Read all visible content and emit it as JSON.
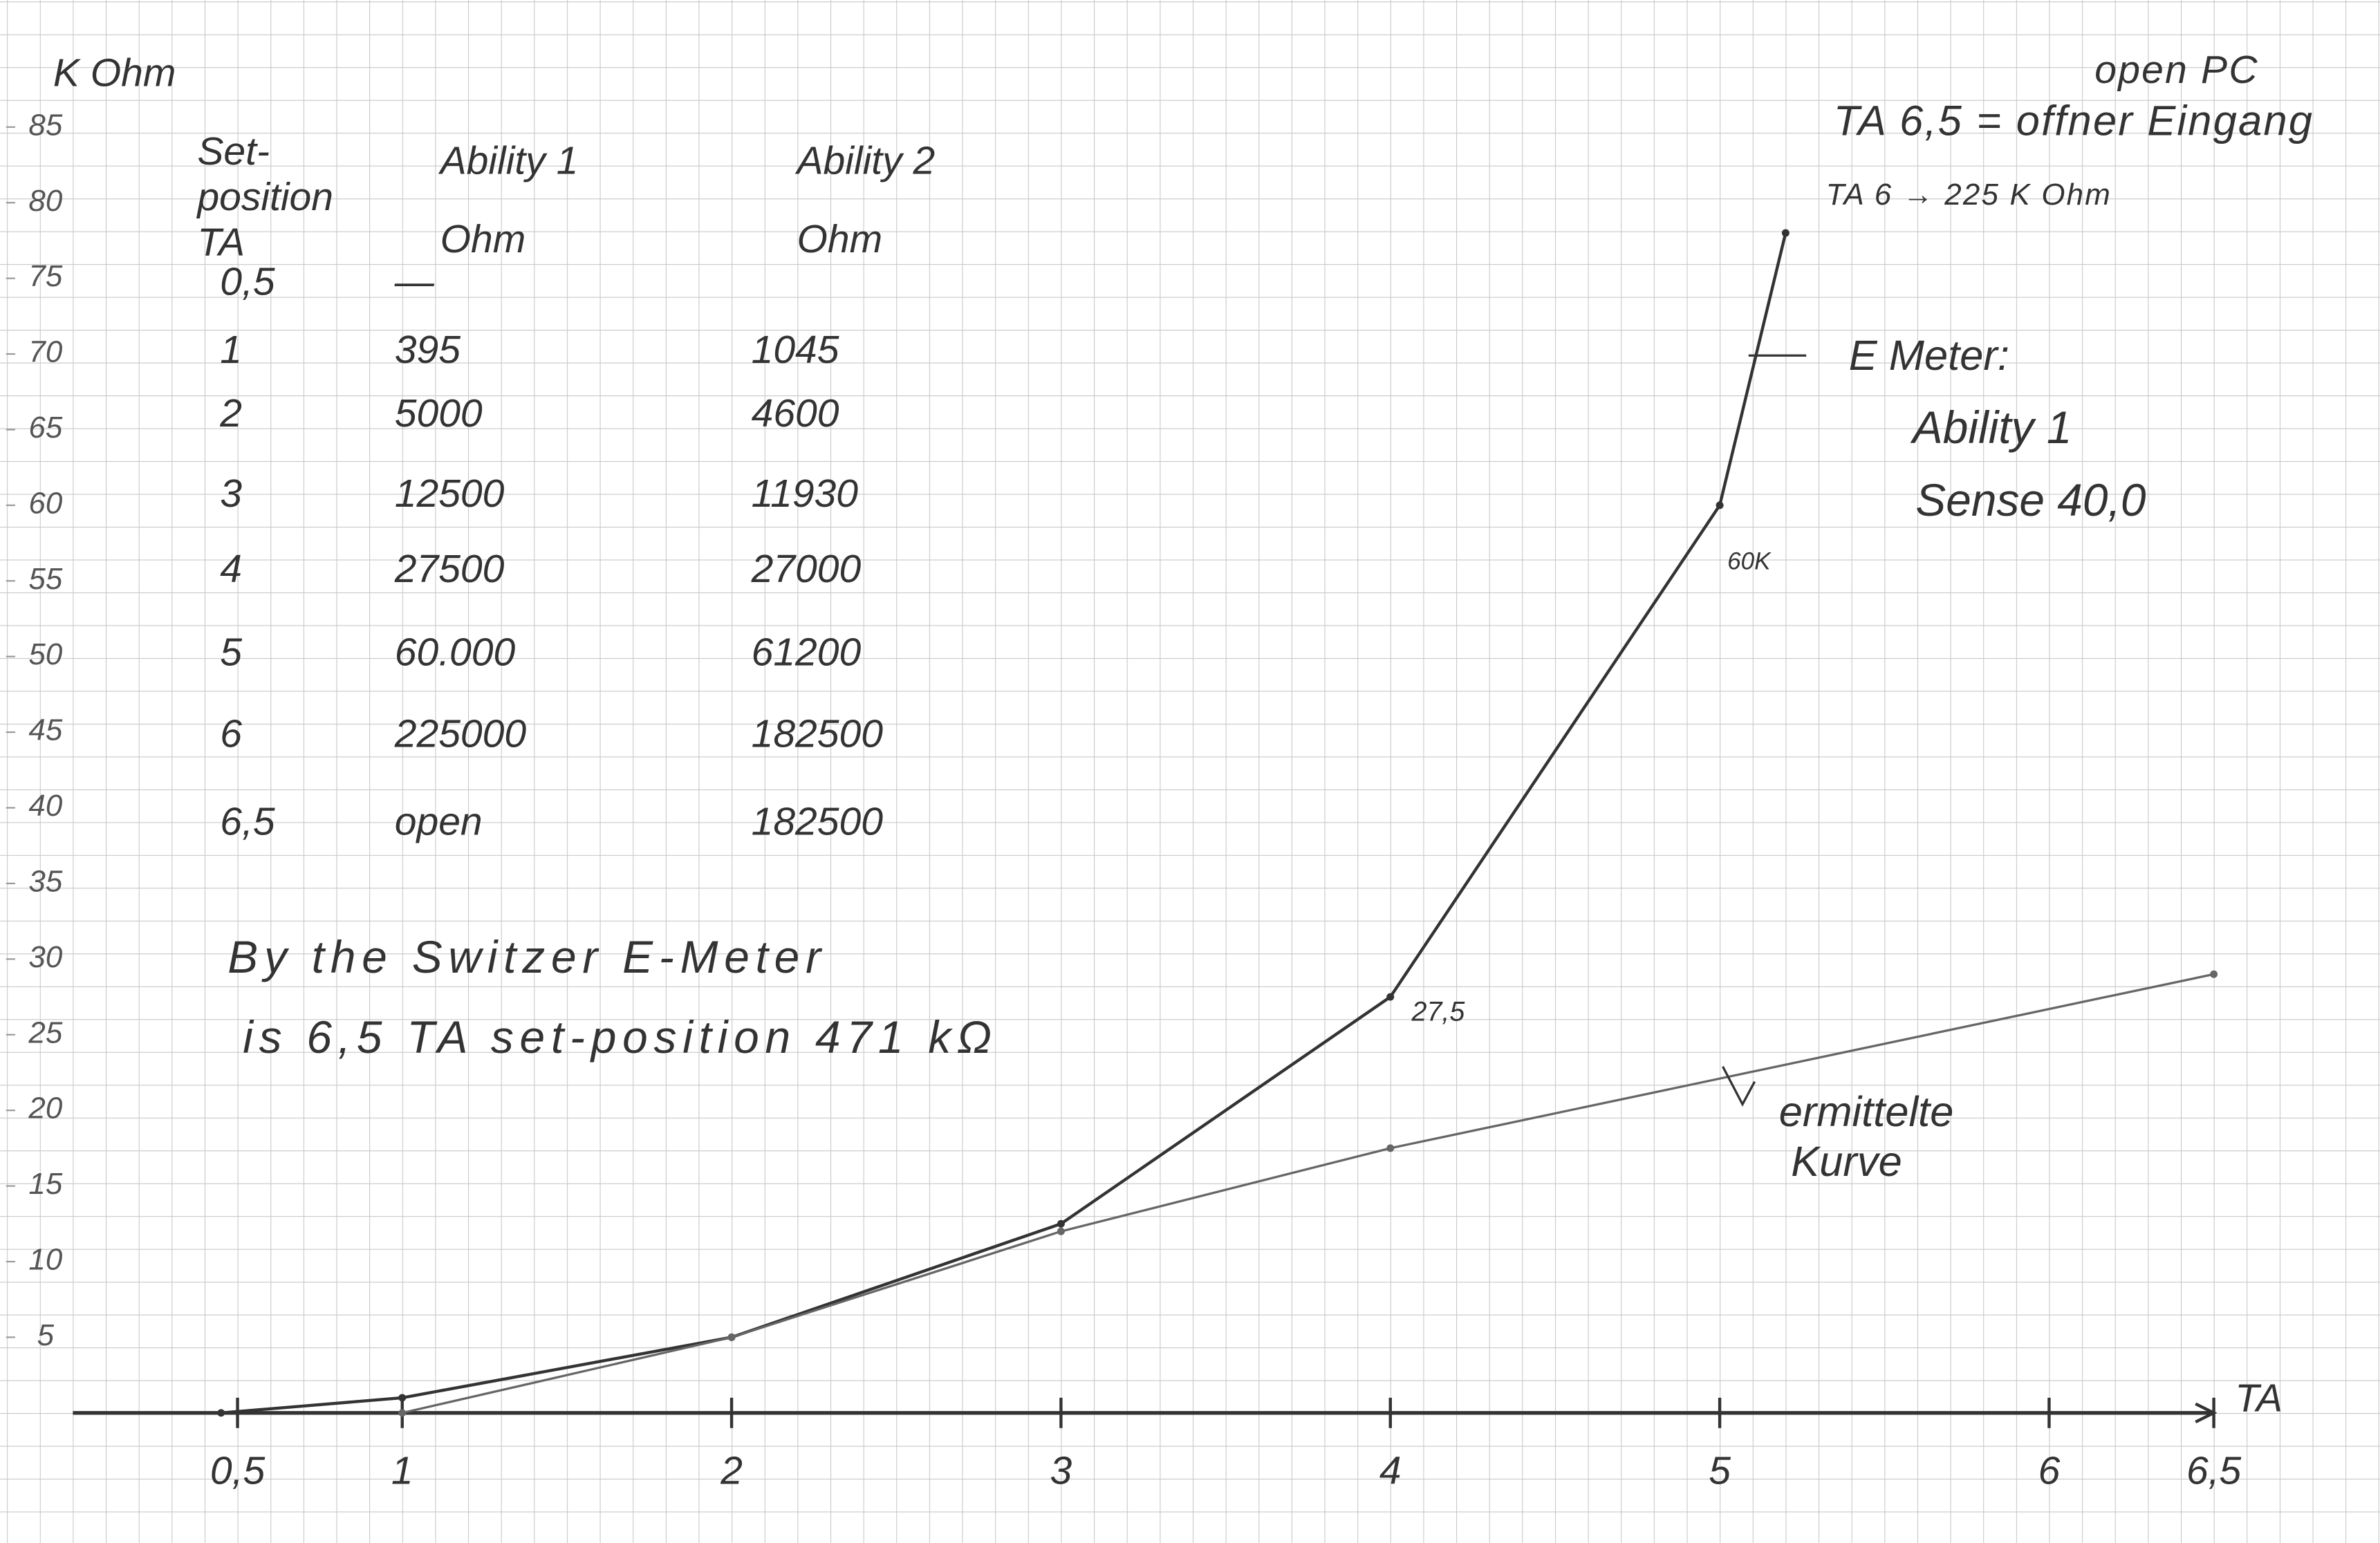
{
  "chart_data": {
    "type": "line",
    "y_label": "K Ohm",
    "x_label": "TA",
    "xlim": [
      0,
      6.5
    ],
    "xticks": [
      {
        "value": 0.5,
        "label": "0,5"
      },
      1,
      2,
      3,
      4,
      5,
      6,
      {
        "value": 6.5,
        "label": "6,5"
      }
    ],
    "ylim": [
      0,
      85
    ],
    "yticks": [
      5,
      10,
      15,
      20,
      25,
      30,
      35,
      40,
      45,
      50,
      55,
      60,
      65,
      70,
      75,
      80,
      85
    ],
    "series": [
      {
        "color": "#333333",
        "x": [
          0.45,
          1,
          2,
          3,
          4,
          5,
          5.2
        ],
        "values": [
          0,
          1,
          5,
          12.5,
          27.5,
          60,
          78
        ]
      },
      {
        "color": "#666666",
        "x": [
          1,
          2,
          3,
          4,
          6.5
        ],
        "values": [
          0,
          5,
          12,
          17.5,
          29
        ]
      }
    ],
    "annotations": [
      "60K",
      "27,5",
      "E Meter:",
      "Ability 1",
      "Sense 40,0",
      "ermittelte",
      "Kurve"
    ]
  },
  "table": {
    "headers": [
      [
        "Set-",
        "position",
        "TA"
      ],
      [
        "Ability 1",
        "Ohm"
      ],
      [
        "Ability 2",
        "Ohm"
      ]
    ],
    "rows": [
      [
        "0,5",
        "—",
        ""
      ],
      [
        "1",
        "395",
        "1045"
      ],
      [
        "2",
        "5000",
        "4600"
      ],
      [
        "3",
        "12500",
        "11930"
      ],
      [
        "4",
        "27500",
        "27000"
      ],
      [
        "5",
        "60.000",
        "61200"
      ],
      [
        "6",
        "225000",
        "182500"
      ],
      [
        "6,5",
        "open",
        "182500"
      ]
    ]
  },
  "notes": [
    "open PC",
    "TA 6,5 = offner Eingang",
    "TA 6 → 225 K Ohm",
    "By the Switzer E-Meter",
    "is 6,5 TA set-position 471 kΩ"
  ]
}
